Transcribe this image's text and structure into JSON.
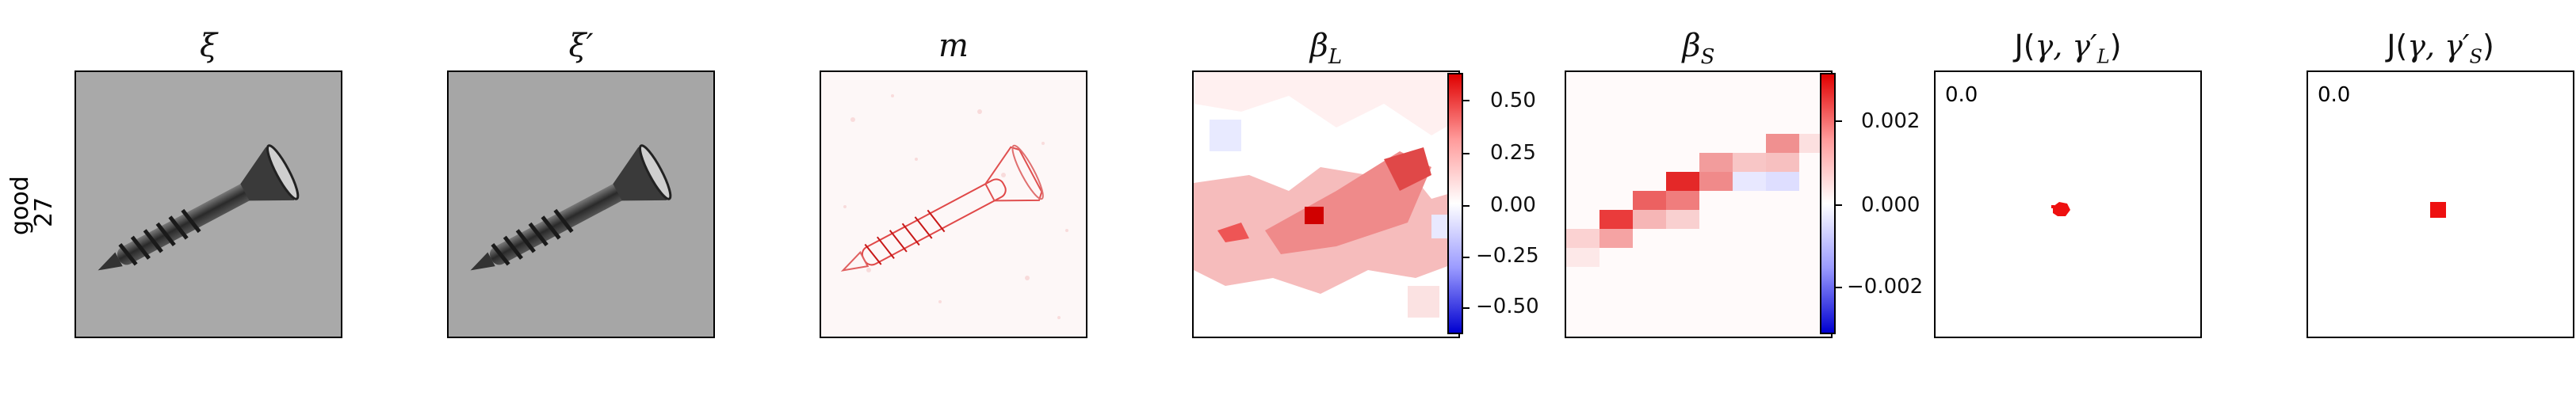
{
  "row": {
    "label_line1": "good",
    "label_line2": "27"
  },
  "panels": [
    {
      "title": "ξ",
      "kind": "image"
    },
    {
      "title": "ξ′",
      "kind": "image"
    },
    {
      "title": "m",
      "kind": "heatmap"
    },
    {
      "title": "β_L",
      "kind": "heatmap",
      "title_main": "β",
      "title_sub": "L"
    },
    {
      "title": "β_S",
      "kind": "heatmap",
      "title_main": "β",
      "title_sub": "S"
    },
    {
      "title": "J(γ, γ′_L)",
      "kind": "mask",
      "title_pre": "J(",
      "title_gamma": "γ, γ′",
      "title_sub": "L",
      "title_post": ")",
      "corner": "0.0"
    },
    {
      "title": "J(γ, γ′_S)",
      "kind": "mask",
      "title_pre": "J(",
      "title_gamma": "γ, γ′",
      "title_sub": "S",
      "title_post": ")",
      "corner": "0.0"
    }
  ],
  "colorbars": [
    {
      "for": "β_L",
      "ticks": [
        "0.50",
        "0.25",
        "0.00",
        "−0.25",
        "−0.50"
      ],
      "colors": {
        "high": "#e00000",
        "mid": "#ffffff",
        "low": "#0000d0"
      }
    },
    {
      "for": "β_S",
      "ticks": [
        "0.002",
        "0.000",
        "−0.002"
      ],
      "colors": {
        "high": "#e00000",
        "mid": "#ffffff",
        "low": "#0000d0"
      }
    }
  ]
}
